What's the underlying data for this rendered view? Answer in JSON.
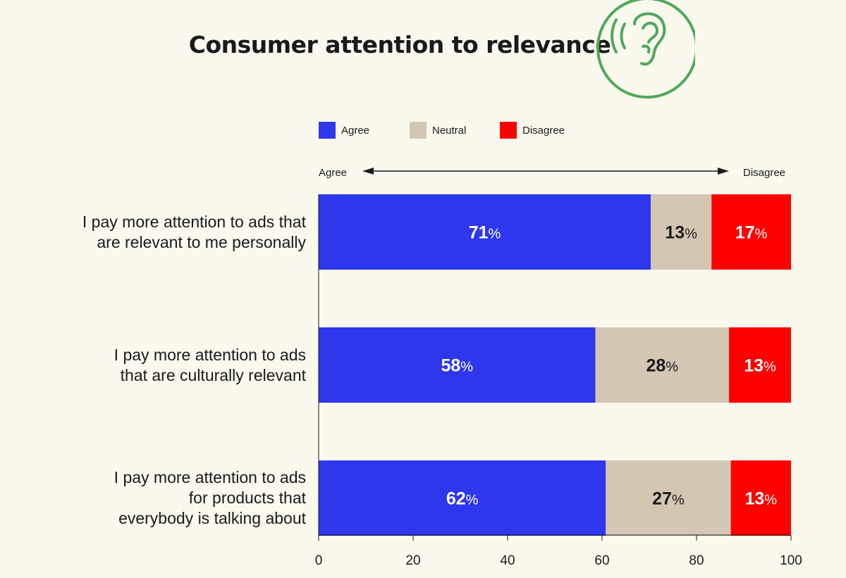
{
  "title": "Consumer attention to relevance",
  "icon": "ear-listening-icon",
  "colors": {
    "agree": "#2e37ec",
    "neutral": "#d3c7b4",
    "disagree": "#ff0000",
    "icon": "#4fa85a",
    "background": "#fbf9ee"
  },
  "legend": [
    "Agree",
    "Neutral",
    "Disagree"
  ],
  "scale": {
    "left_label": "Agree",
    "right_label": "Disagree"
  },
  "chart_data": {
    "type": "bar",
    "orientation": "horizontal",
    "stacked": true,
    "title": "Consumer attention to relevance",
    "categories": [
      "I pay more attention to ads that are relevant to me personally",
      "I pay more attention to ads that are culturally relevant",
      "I pay more attention to ads for products that everybody is talking about"
    ],
    "category_lines": [
      [
        "I pay more attention to ads that",
        "are relevant to me personally"
      ],
      [
        "I pay more attention to ads",
        "that are culturally relevant"
      ],
      [
        "I pay more attention to ads",
        "for products that",
        "everybody is talking about"
      ]
    ],
    "series": [
      {
        "name": "Agree",
        "values": [
          71,
          58,
          62
        ]
      },
      {
        "name": "Neutral",
        "values": [
          13,
          28,
          27
        ]
      },
      {
        "name": "Disagree",
        "values": [
          17,
          13,
          13
        ]
      }
    ],
    "xlim": [
      0,
      100
    ],
    "xticks": [
      0,
      20,
      40,
      60,
      80,
      100
    ],
    "value_suffix": "%",
    "xlabel": "",
    "ylabel": ""
  }
}
